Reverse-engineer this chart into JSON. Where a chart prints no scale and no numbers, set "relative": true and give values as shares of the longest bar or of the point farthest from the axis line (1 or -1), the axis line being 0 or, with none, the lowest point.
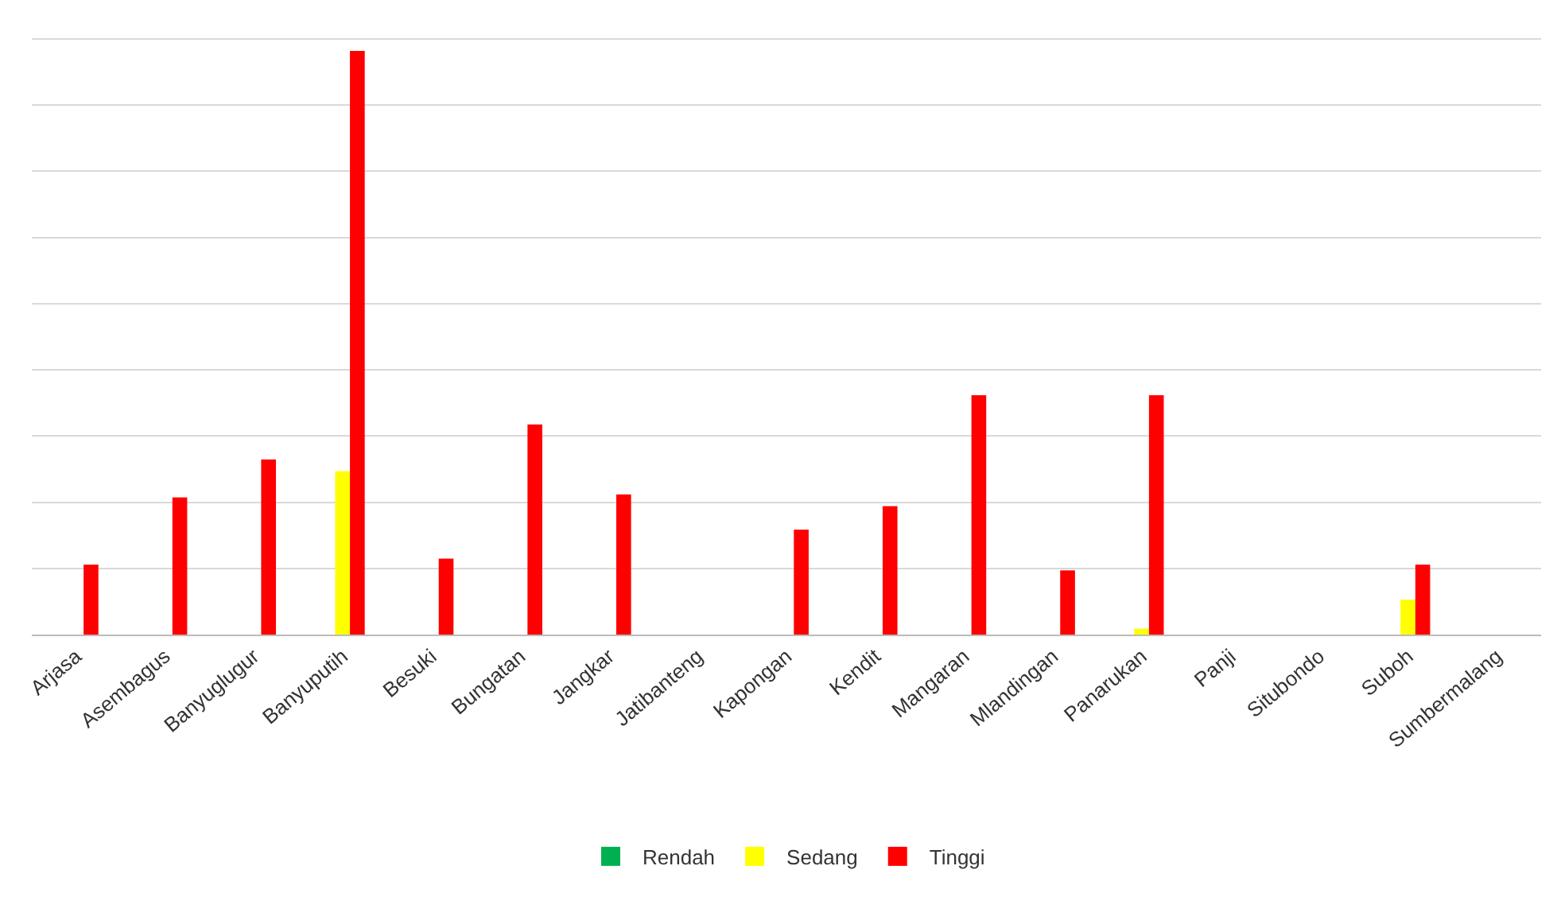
{
  "chart_data": {
    "type": "bar",
    "relative": true,
    "grid": "y",
    "legend": "bottom",
    "categories": [
      "Arjasa",
      "Asembagus",
      "Banyuglugur",
      "Banyuputih",
      "Besuki",
      "Bungatan",
      "Jangkar",
      "Jatibanteng",
      "Kapongan",
      "Kendit",
      "Mangaran",
      "Mlandingan",
      "Panarukan",
      "Panji",
      "Situbondo",
      "Suboh",
      "Sumbermalang"
    ],
    "series": [
      {
        "name": "Rendah",
        "color": "#00b050",
        "values": [
          0,
          0,
          0,
          0,
          0,
          0,
          0,
          0,
          0,
          0,
          0,
          0,
          0,
          0,
          0,
          0,
          0
        ]
      },
      {
        "name": "Sedang",
        "color": "#ffff00",
        "values": [
          0,
          0,
          0,
          0.28,
          0,
          0,
          0,
          0,
          0,
          0,
          0,
          0,
          0.01,
          0,
          0,
          0.06,
          0
        ]
      },
      {
        "name": "Tinggi",
        "color": "#ff0000",
        "values": [
          0.12,
          0.235,
          0.3,
          1,
          0.13,
          0.36,
          0.24,
          0,
          0.18,
          0.22,
          0.41,
          0.11,
          0.41,
          0,
          0,
          0.12,
          0
        ]
      }
    ]
  }
}
